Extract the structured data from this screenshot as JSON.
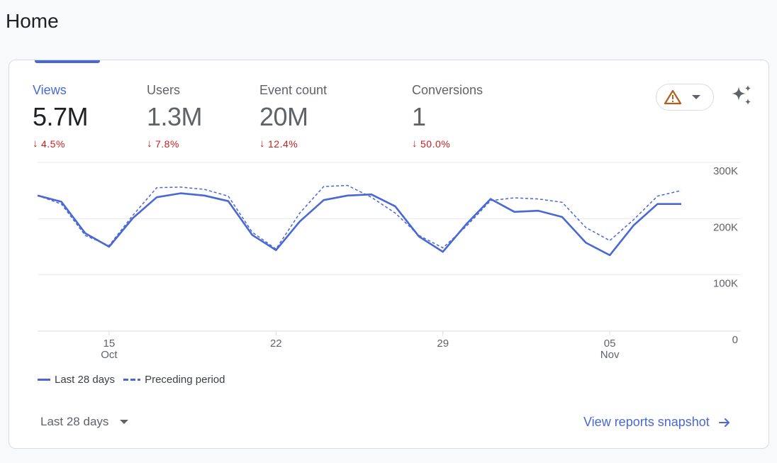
{
  "page": {
    "title": "Home"
  },
  "metrics": [
    {
      "label": "Views",
      "value": "5.7M",
      "change": "4.5%"
    },
    {
      "label": "Users",
      "value": "1.3M",
      "change": "7.8%"
    },
    {
      "label": "Event count",
      "value": "20M",
      "change": "12.4%"
    },
    {
      "label": "Conversions",
      "value": "1",
      "change": "50.0%"
    }
  ],
  "colors": {
    "accent": "#4a67d6",
    "negative": "#c5221f",
    "warning": "#b0601c"
  },
  "icons": {
    "warning": "warning-triangle-icon",
    "sparkle": "sparkle-icon",
    "arrow": "arrow-right-icon"
  },
  "chart_data": {
    "type": "line",
    "ylim": [
      0,
      300000
    ],
    "y_ticks": [
      {
        "value": 0,
        "label": "0"
      },
      {
        "value": 100000,
        "label": "100K"
      },
      {
        "value": 200000,
        "label": "200K"
      },
      {
        "value": 300000,
        "label": "300K"
      }
    ],
    "x_ticks": [
      {
        "index": 3,
        "label": "15",
        "sub": "Oct"
      },
      {
        "index": 10,
        "label": "22",
        "sub": ""
      },
      {
        "index": 17,
        "label": "29",
        "sub": ""
      },
      {
        "index": 24,
        "label": "05",
        "sub": "Nov"
      }
    ],
    "series": [
      {
        "name": "Last 28 days",
        "style": "solid",
        "values": [
          241000,
          230000,
          174000,
          150000,
          201000,
          238000,
          245000,
          241000,
          231000,
          171000,
          144000,
          195000,
          233000,
          241000,
          243000,
          222000,
          168000,
          141000,
          191000,
          235000,
          212000,
          214000,
          203000,
          157000,
          135000,
          188000,
          226000,
          226000
        ]
      },
      {
        "name": "Preceding period",
        "style": "dashed",
        "values": [
          241000,
          226000,
          170000,
          152000,
          206000,
          255000,
          256000,
          252000,
          240000,
          176000,
          146000,
          210000,
          257000,
          259000,
          238000,
          210000,
          170000,
          148000,
          187000,
          232000,
          237000,
          235000,
          229000,
          184000,
          161000,
          198000,
          240000,
          250000
        ]
      }
    ]
  },
  "legend": {
    "current": "Last 28 days",
    "previous": "Preceding period"
  },
  "footer": {
    "date_range": "Last 28 days",
    "link": "View reports snapshot"
  }
}
